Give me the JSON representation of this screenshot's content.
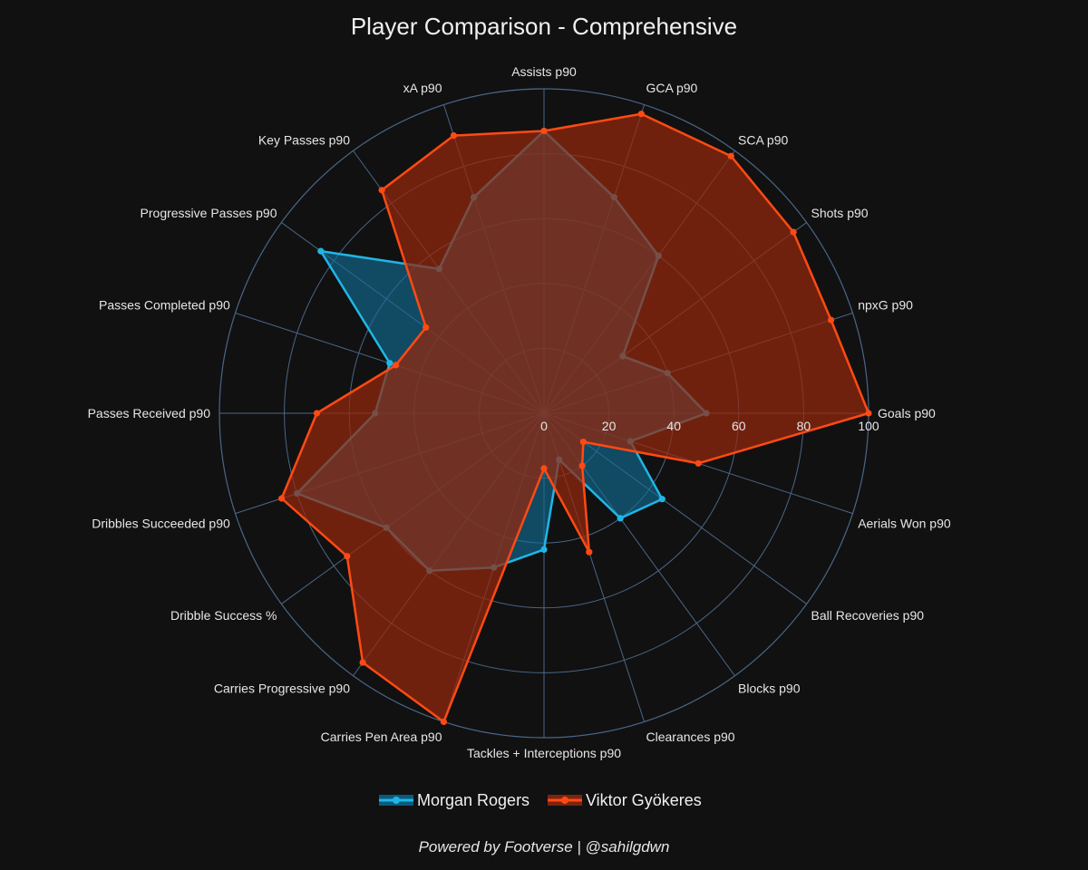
{
  "chart_data": {
    "type": "radar",
    "title": "Player Comparison - Comprehensive",
    "axes": [
      "Goals p90",
      "npxG p90",
      "Shots p90",
      "SCA p90",
      "GCA p90",
      "Assists p90",
      "xA p90",
      "Key Passes p90",
      "Progressive Passes p90",
      "Passes Completed p90",
      "Passes Received p90",
      "Dribbles Succeeded p90",
      "Dribble Success %",
      "Carries Progressive p90",
      "Carries Pen Area p90",
      "Tackles + Interceptions p90",
      "Clearances p90",
      "Blocks p90",
      "Ball Recoveries p90",
      "Aerials Won p90"
    ],
    "radial_range": [
      0,
      100
    ],
    "radial_ticks": [
      "0",
      "20",
      "40",
      "60",
      "80",
      "100"
    ],
    "series": [
      {
        "name": "Morgan Rogers",
        "color": "#1fb6e6",
        "fill": "rgba(18,110,150,0.62)",
        "values": [
          50,
          40,
          30,
          60,
          70,
          87,
          70,
          55,
          85,
          50,
          52,
          80,
          60,
          60,
          50,
          42,
          15,
          40,
          45,
          28
        ]
      },
      {
        "name": "Viktor Gyökeres",
        "color": "#ff4a14",
        "fill": "rgba(150,40,12,0.72)",
        "values": [
          100,
          93,
          95,
          98,
          97,
          87,
          90,
          85,
          45,
          48,
          70,
          85,
          75,
          95,
          100,
          17,
          45,
          20,
          15,
          50
        ]
      }
    ]
  },
  "footer": "Powered by Footverse | @sahilgdwn"
}
